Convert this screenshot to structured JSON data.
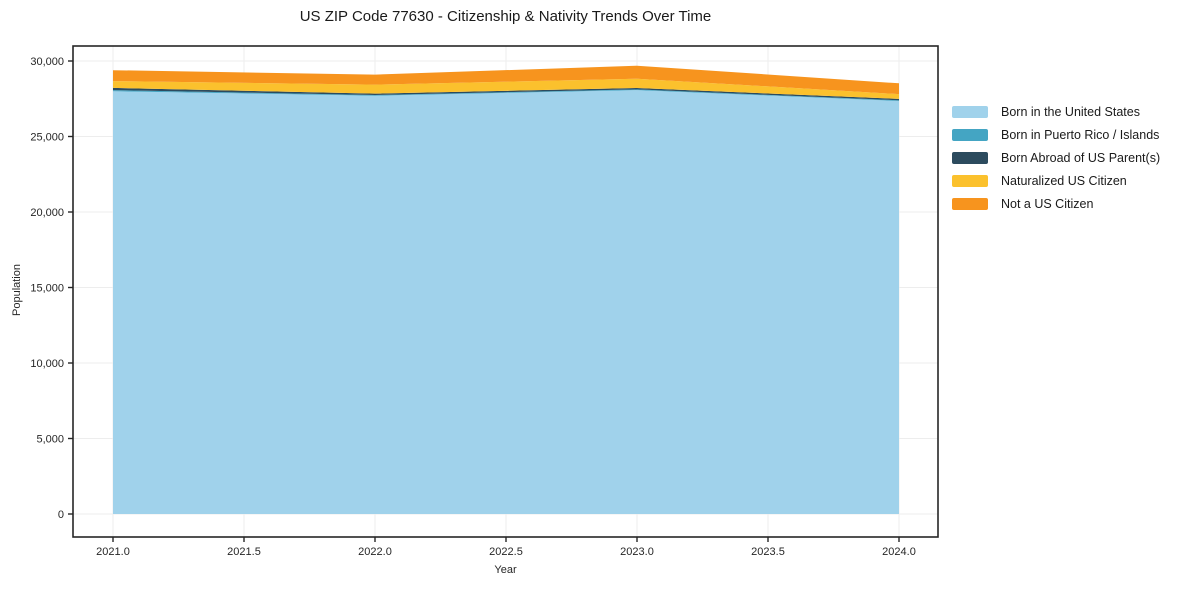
{
  "title": "US ZIP Code 77630 - Citizenship & Nativity Trends Over Time",
  "axes": {
    "x_label": "Year",
    "y_label": "Population",
    "x_ticks": [
      {
        "label": "2021.0",
        "value": 2021.0
      },
      {
        "label": "2021.5",
        "value": 2021.5
      },
      {
        "label": "2022.0",
        "value": 2022.0
      },
      {
        "label": "2022.5",
        "value": 2022.5
      },
      {
        "label": "2023.0",
        "value": 2023.0
      },
      {
        "label": "2023.5",
        "value": 2023.5
      },
      {
        "label": "2024.0",
        "value": 2024.0
      }
    ],
    "y_ticks": [
      {
        "label": "0",
        "value": 0
      },
      {
        "label": "5,000",
        "value": 5000
      },
      {
        "label": "10,000",
        "value": 10000
      },
      {
        "label": "15,000",
        "value": 15000
      },
      {
        "label": "20,000",
        "value": 20000
      },
      {
        "label": "25,000",
        "value": 25000
      },
      {
        "label": "30,000",
        "value": 30000
      }
    ]
  },
  "chart_data": {
    "type": "area",
    "stacked": true,
    "title": "US ZIP Code 77630 - Citizenship & Nativity Trends Over Time",
    "xlabel": "Year",
    "ylabel": "Population",
    "x": [
      2021,
      2022,
      2023,
      2024
    ],
    "series": [
      {
        "name": "Born in the United States",
        "color": "#A0D2EB",
        "values": [
          28000,
          27700,
          28070,
          27350
        ]
      },
      {
        "name": "Born in Puerto Rico / Islands",
        "color": "#44A5C3",
        "values": [
          70,
          50,
          50,
          50
        ]
      },
      {
        "name": "Born Abroad of US Parent(s)",
        "color": "#2C4B5E",
        "values": [
          150,
          90,
          90,
          90
        ]
      },
      {
        "name": "Naturalized US Citizen",
        "color": "#FBC12D",
        "values": [
          450,
          600,
          620,
          320
        ]
      },
      {
        "name": "Not a US Citizen",
        "color": "#F7941E",
        "values": [
          720,
          660,
          860,
          710
        ]
      }
    ],
    "totals": [
      29390,
      29100,
      29690,
      28520
    ],
    "xlim": [
      2020.85,
      2024.15
    ],
    "ylim": [
      -1500,
      31000
    ],
    "grid": true,
    "legend_position": "right-outside"
  },
  "style": {
    "grid_color": "#ededed",
    "spine_color": "#262626",
    "tick_label_color": "#262626",
    "background": "#ffffff"
  }
}
